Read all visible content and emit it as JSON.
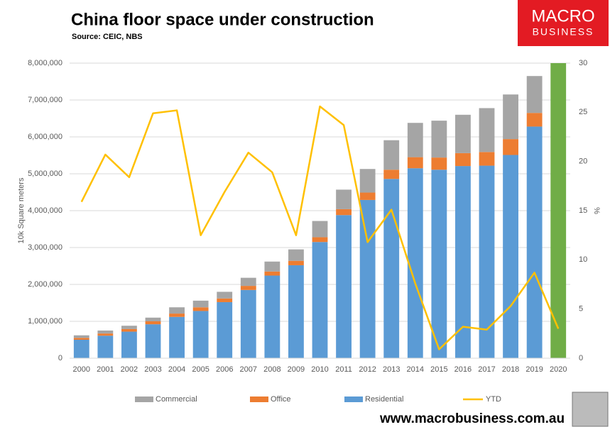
{
  "chart_data": {
    "type": "bar",
    "title": "China floor space under construction",
    "subtitle": "Source: CEIC, NBS",
    "ylabel": "10k Square meters",
    "y2label": "%",
    "stacked": true,
    "categories": [
      "2000",
      "2001",
      "2002",
      "2003",
      "2004",
      "2005",
      "2006",
      "2007",
      "2008",
      "2009",
      "2010",
      "2011",
      "2012",
      "2013",
      "2014",
      "2015",
      "2016",
      "2017",
      "2018",
      "2019",
      "2020"
    ],
    "series": [
      {
        "name": "Commercial",
        "color": "#a5a5a5",
        "values": [
          70000,
          80000,
          90000,
          100000,
          170000,
          180000,
          180000,
          220000,
          270000,
          310000,
          440000,
          530000,
          640000,
          800000,
          930000,
          1000000,
          1040000,
          1190000,
          1210000,
          1000000,
          null
        ]
      },
      {
        "name": "Office",
        "color": "#ed7d31",
        "values": [
          50000,
          60000,
          70000,
          80000,
          90000,
          100000,
          100000,
          110000,
          110000,
          120000,
          130000,
          160000,
          200000,
          250000,
          300000,
          330000,
          350000,
          370000,
          430000,
          370000,
          null
        ]
      },
      {
        "name": "Residential",
        "color": "#5b9bd5",
        "values": [
          500000,
          610000,
          720000,
          920000,
          1120000,
          1280000,
          1520000,
          1850000,
          2240000,
          2520000,
          3150000,
          3880000,
          4290000,
          4860000,
          5150000,
          5110000,
          5210000,
          5220000,
          5510000,
          6280000,
          null
        ]
      },
      {
        "name": "YTD",
        "type": "line",
        "axis": "y2",
        "color": "#ffc000",
        "values": [
          15.9,
          20.7,
          18.4,
          24.9,
          25.2,
          12.5,
          16.9,
          20.9,
          18.9,
          12.5,
          25.6,
          23.7,
          11.8,
          15.1,
          7.6,
          0.9,
          3.2,
          2.9,
          5.3,
          8.7,
          3.0
        ]
      }
    ],
    "highlight": {
      "index": 20,
      "color": "#70ad47"
    },
    "ylim": [
      0,
      8000000
    ],
    "yticks": [
      0,
      {
        "value": 1000000,
        "label": "1,000,000"
      },
      {
        "value": 2000000,
        "label": "2,000,000"
      },
      {
        "value": 3000000,
        "label": "3,000,000"
      },
      {
        "value": 4000000,
        "label": "4,000,000"
      },
      {
        "value": 5000000,
        "label": "5,000,000"
      },
      {
        "value": 6000000,
        "label": "6,000,000"
      },
      {
        "value": 7000000,
        "label": "7,000,000"
      },
      {
        "value": 8000000,
        "label": "8,000,000"
      }
    ],
    "y2lim": [
      0,
      30
    ],
    "y2ticks": [
      0,
      5,
      10,
      15,
      20,
      25,
      30
    ],
    "grid": true,
    "legend": "bottom"
  },
  "logo": {
    "line1": "MACRO",
    "line2": "BUSINESS"
  },
  "footer": "www.macrobusiness.com.au"
}
